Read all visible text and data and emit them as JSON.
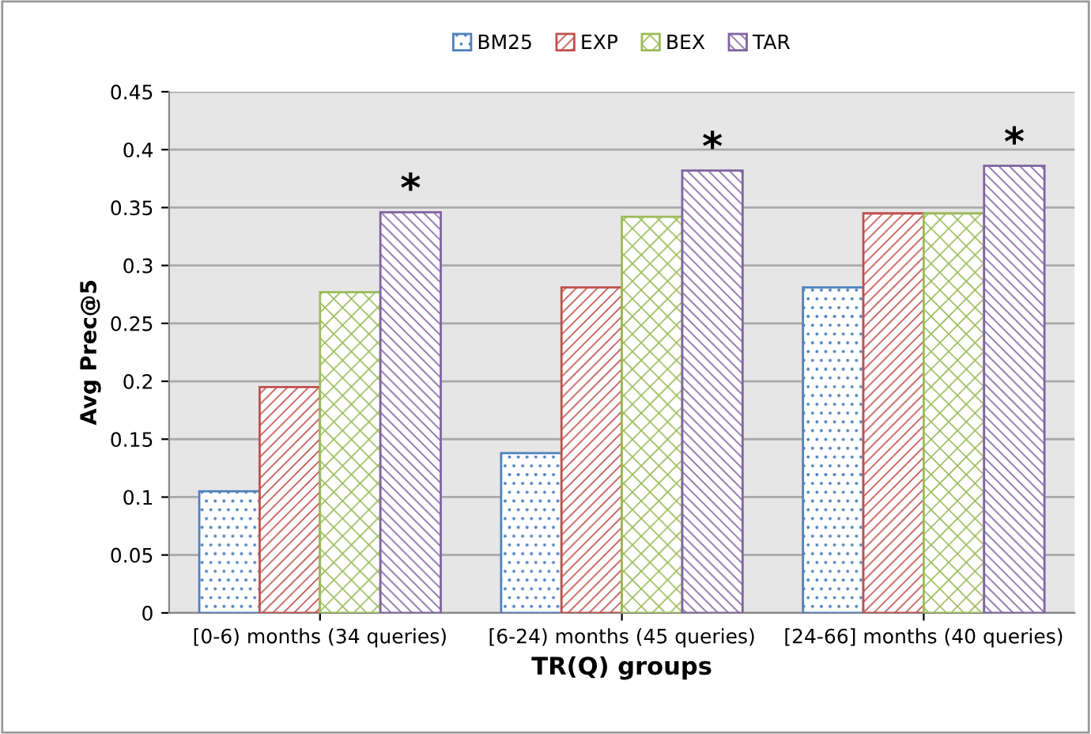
{
  "chart_data": {
    "type": "bar",
    "xlabel": "TR(Q) groups",
    "ylabel": "Avg Prec@5",
    "categories": [
      "[0-6) months (34 queries)",
      "[6-24) months (45 queries)",
      "[24-66] months (40 queries)"
    ],
    "series": [
      {
        "name": "BM25",
        "color": "#4f81bd",
        "values": [
          0.105,
          0.138,
          0.281
        ]
      },
      {
        "name": "EXP",
        "color": "#c0504d",
        "values": [
          0.195,
          0.281,
          0.345
        ]
      },
      {
        "name": "BEX",
        "color": "#9bbb59",
        "values": [
          0.277,
          0.342,
          0.345
        ]
      },
      {
        "name": "TAR",
        "color": "#8064a2",
        "values": [
          0.346,
          0.382,
          0.386
        ]
      }
    ],
    "ylim": [
      0,
      0.45
    ],
    "yticks": [
      0,
      0.05,
      0.1,
      0.15,
      0.2,
      0.25,
      0.3,
      0.35,
      0.4,
      0.45
    ],
    "grid": "y",
    "legend": "top",
    "annotations": [
      "*",
      "*",
      "*"
    ]
  }
}
